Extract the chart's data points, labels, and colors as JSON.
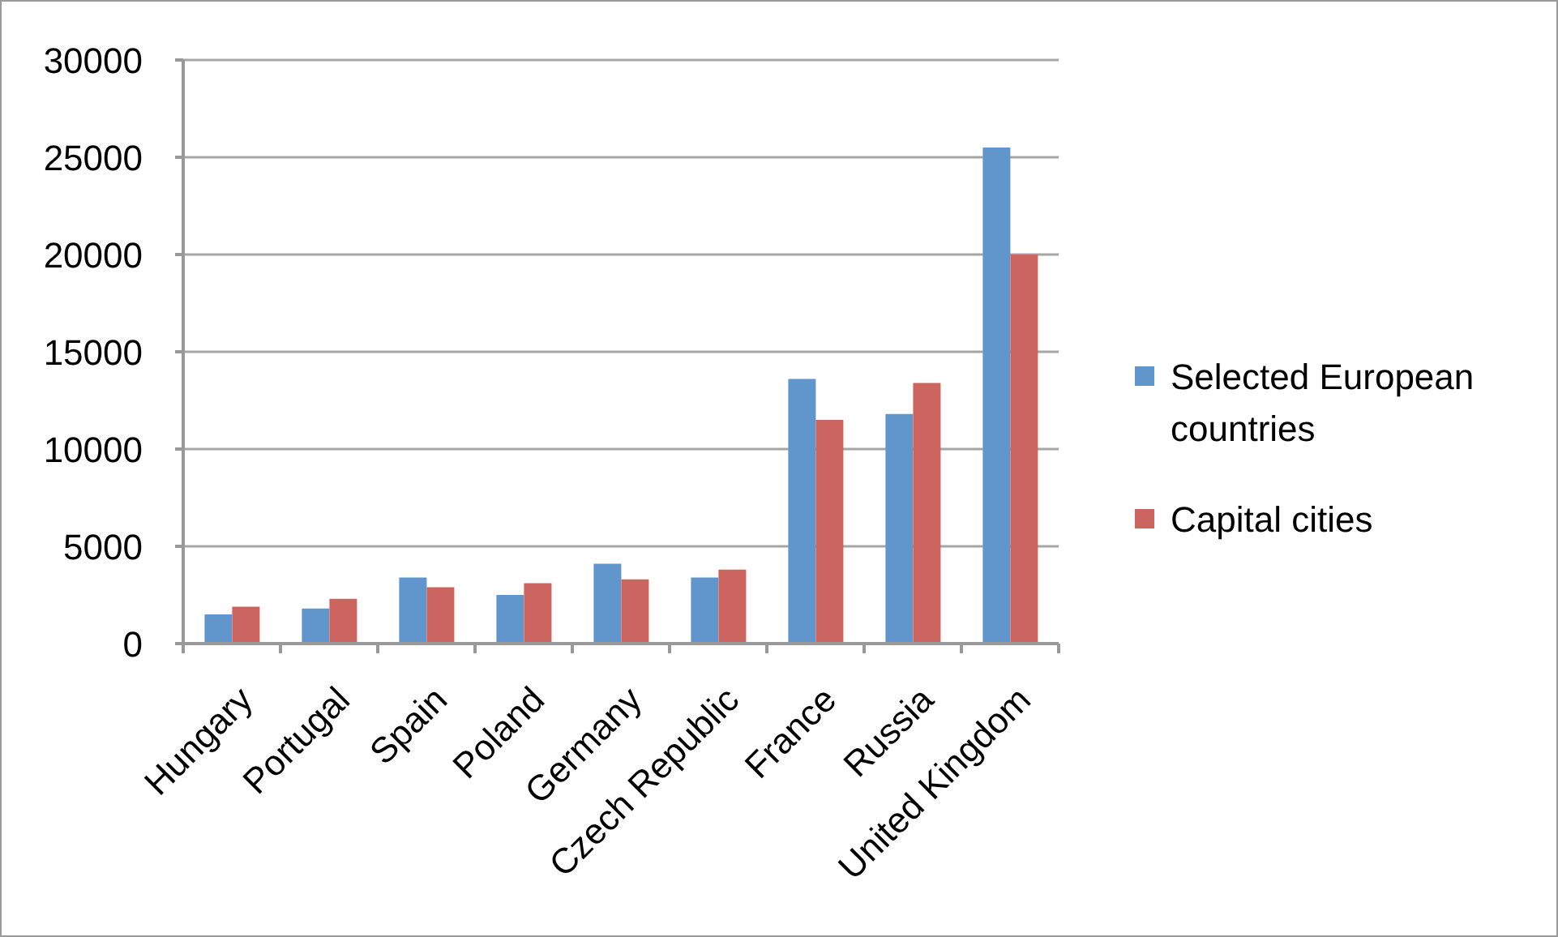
{
  "chart_data": {
    "type": "bar",
    "categories": [
      "Hungary",
      "Portugal",
      "Spain",
      "Poland",
      "Germany",
      "Czech Republic",
      "France",
      "Russia",
      "United Kingdom"
    ],
    "series": [
      {
        "name": "Selected European countries",
        "color": "#6196cc",
        "values": [
          1500,
          1800,
          3400,
          2500,
          4100,
          3400,
          13600,
          11800,
          25500
        ]
      },
      {
        "name": "Capital cities",
        "color": "#cc655f",
        "values": [
          1900,
          2300,
          2900,
          3100,
          3300,
          3800,
          11500,
          13400,
          20000
        ]
      }
    ],
    "ylim": [
      0,
      30000
    ],
    "yticks": [
      0,
      5000,
      10000,
      15000,
      20000,
      25000,
      30000
    ],
    "grid": "y",
    "legend": "right"
  }
}
